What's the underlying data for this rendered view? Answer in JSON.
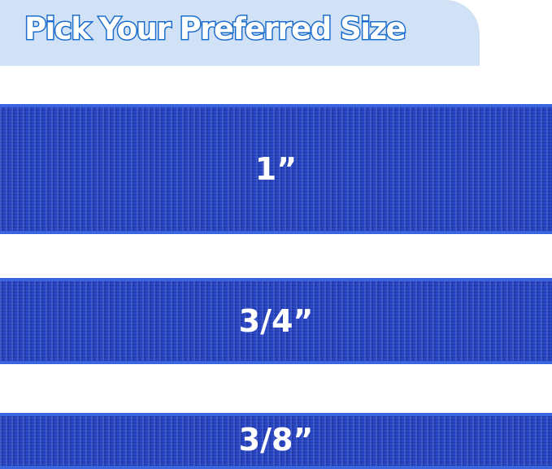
{
  "header": {
    "title": "Pick Your Preferred Size"
  },
  "sizes": [
    {
      "label": "1”"
    },
    {
      "label": "3/4”"
    },
    {
      "label": "3/8”"
    }
  ],
  "colors": {
    "banner": "#d2e2f6",
    "title_outline": "#1a6dcc",
    "webbing": "#2a48c8"
  }
}
